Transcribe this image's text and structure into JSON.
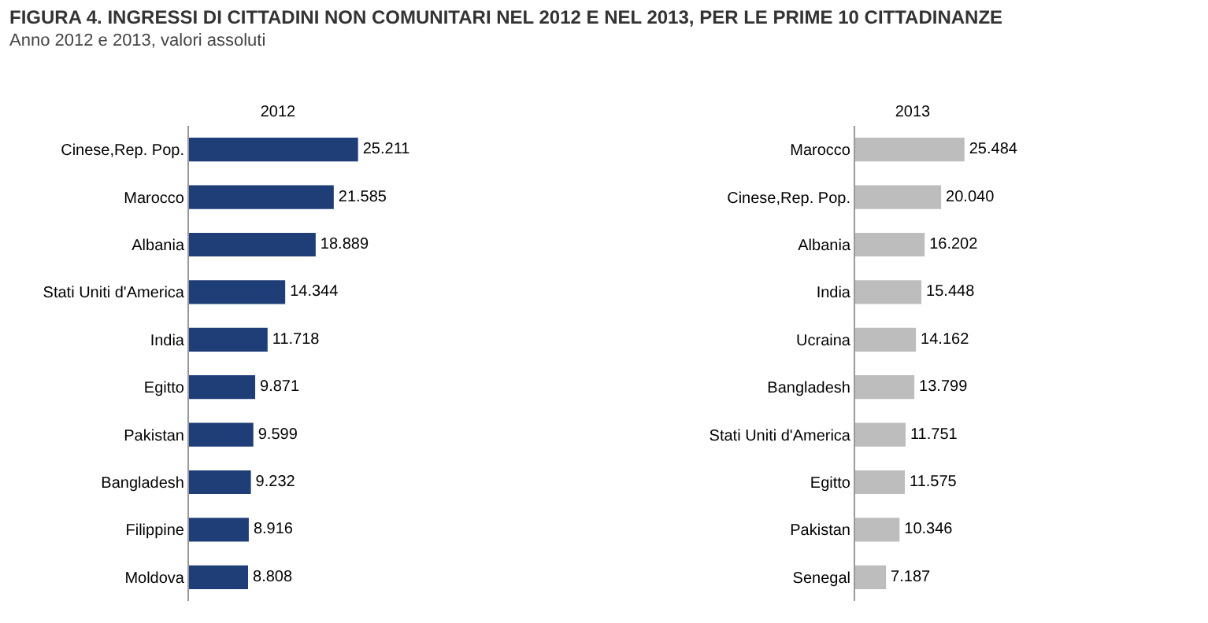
{
  "chart_data": [
    {
      "type": "bar",
      "orientation": "horizontal",
      "title": "FIGURA 4. INGRESSI DI CITTADINI NON COMUNITARI NEL 2012 E NEL 2013, PER LE PRIME 10 CITTADINANZE",
      "subtitle": "Anno 2012 e 2013, valori assoluti",
      "xlabel": "2012",
      "tick_labels": "y",
      "categories": [
        "Cinese,Rep. Pop.",
        "Marocco",
        "Albania",
        "Stati Uniti d'America",
        "India",
        "Egitto",
        "Pakistan",
        "Bangladesh",
        "Filippine",
        "Moldova"
      ],
      "values": [
        25211,
        21585,
        18889,
        14344,
        11718,
        9871,
        9599,
        9232,
        8916,
        8808
      ],
      "value_labels": [
        "25.211",
        "21.585",
        "18.889",
        "14.344",
        "11.718",
        "9.871",
        "9.599",
        "9.232",
        "8.916",
        "8.808"
      ],
      "color": "#1f3e78"
    },
    {
      "type": "bar",
      "orientation": "horizontal",
      "xlabel": "2013",
      "tick_labels": "y",
      "categories": [
        "Marocco",
        "Cinese,Rep. Pop.",
        "Albania",
        "India",
        "Ucraina",
        "Bangladesh",
        "Stati Uniti d'America",
        "Egitto",
        "Pakistan",
        "Senegal"
      ],
      "values": [
        25484,
        20040,
        16202,
        15448,
        14162,
        13799,
        11751,
        11575,
        10346,
        7187
      ],
      "value_labels": [
        "25.484",
        "20.040",
        "16.202",
        "15.448",
        "14.162",
        "13.799",
        "11.751",
        "11.575",
        "10.346",
        "7.187"
      ],
      "color": "#bdbdbd"
    }
  ]
}
